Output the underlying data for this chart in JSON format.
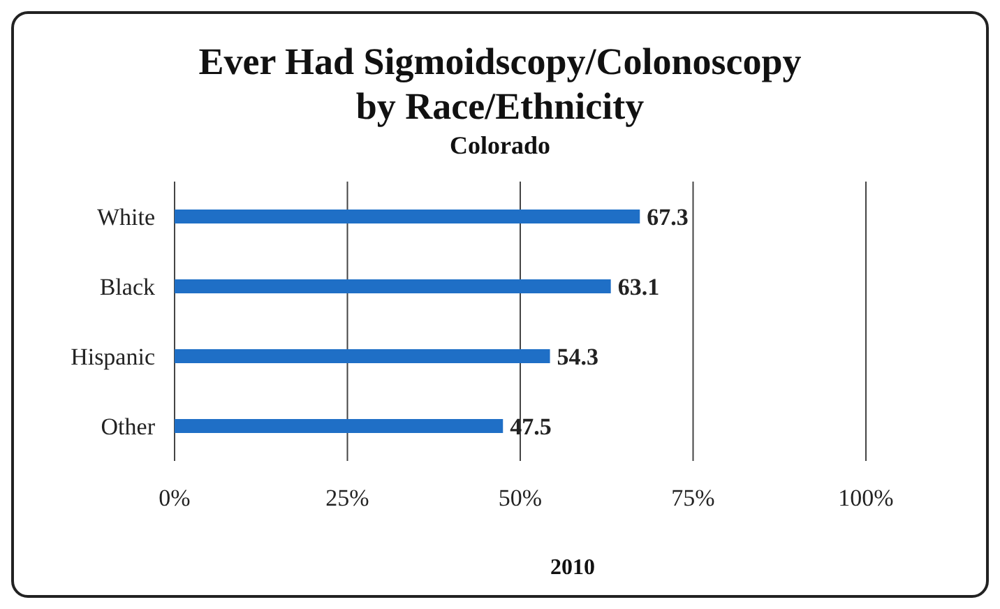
{
  "chart_data": {
    "type": "bar",
    "orientation": "horizontal",
    "title": "Ever Had Sigmoidscopy/Colonoscopy\nby Race/Ethnicity",
    "subtitle": "Colorado",
    "xlabel": "2010",
    "categories": [
      "White",
      "Black",
      "Hispanic",
      "Other"
    ],
    "values": [
      67.3,
      63.1,
      54.3,
      47.5
    ],
    "color": "#1f6fc6",
    "xlim": [
      0,
      100
    ],
    "xticks": [
      {
        "value": 0,
        "label": "0%"
      },
      {
        "value": 25,
        "label": "25%"
      },
      {
        "value": 50,
        "label": "50%"
      },
      {
        "value": 75,
        "label": "75%"
      },
      {
        "value": 100,
        "label": "100%"
      }
    ],
    "grid": "x",
    "data_labels": true
  }
}
